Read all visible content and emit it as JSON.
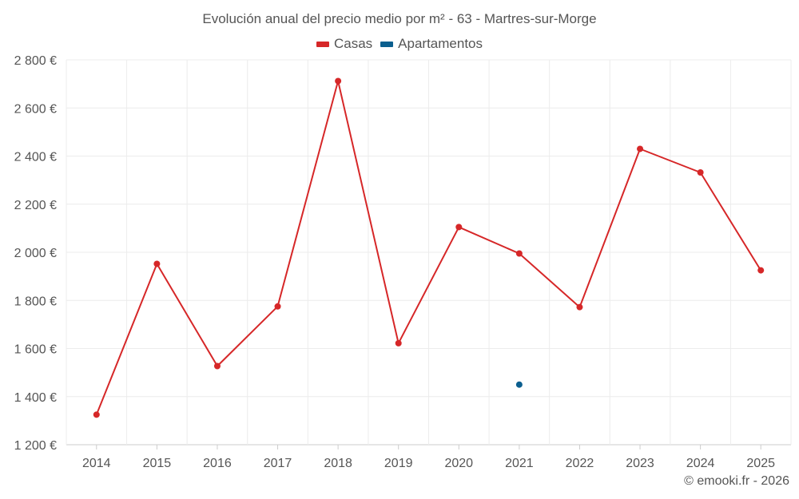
{
  "chart_data": {
    "type": "line",
    "title": "Evolución anual del precio medio por m² - 63 - Martres-sur-Morge",
    "categories": [
      "2014",
      "2015",
      "2016",
      "2017",
      "2018",
      "2019",
      "2020",
      "2021",
      "2022",
      "2023",
      "2024",
      "2025"
    ],
    "series": [
      {
        "name": "Casas",
        "color": "#d62728",
        "values": [
          1325,
          1952,
          1527,
          1775,
          2712,
          1622,
          2105,
          1995,
          1772,
          2430,
          2332,
          1925
        ]
      },
      {
        "name": "Apartamentos",
        "color": "#0b5f8f",
        "values": [
          null,
          null,
          null,
          null,
          null,
          null,
          null,
          1450,
          null,
          null,
          null,
          null
        ]
      }
    ],
    "ylim": [
      1200,
      2800
    ],
    "yticks": [
      1200,
      1400,
      1600,
      1800,
      2000,
      2200,
      2400,
      2600,
      2800
    ],
    "ytick_labels": [
      "1 200 €",
      "1 400 €",
      "1 600 €",
      "1 800 €",
      "2 000 €",
      "2 200 €",
      "2 400 €",
      "2 600 €",
      "2 800 €"
    ],
    "xlabel": "",
    "ylabel": "",
    "grid": true,
    "legend_position": "top-center"
  },
  "credit": "© emooki.fr - 2026"
}
